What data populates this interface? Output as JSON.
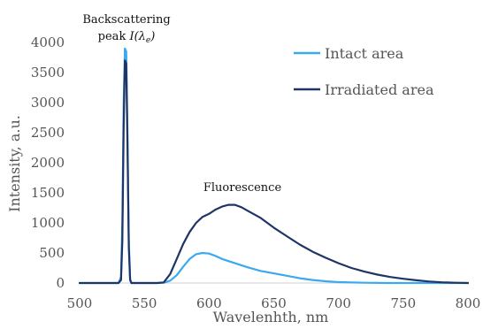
{
  "chart_data": {
    "type": "line",
    "xlabel": "Wavelenhth, nm",
    "ylabel": "Intensity, a.u.",
    "xlim": [
      500,
      800
    ],
    "ylim": [
      0,
      4000
    ],
    "x_ticks": [
      500,
      550,
      600,
      650,
      700,
      750,
      800
    ],
    "y_ticks": [
      0,
      500,
      1000,
      1500,
      2000,
      2500,
      3000,
      3500,
      4000
    ],
    "grid": false,
    "legend_position": "top-right",
    "annotations": {
      "backscatter_line1": "Backscattering",
      "backscatter_line2_prefix": "peak ",
      "backscatter_line2_func": "I",
      "backscatter_line2_sym": "(λ",
      "backscatter_line2_sub": "e",
      "backscatter_line2_close": ")",
      "fluorescence": "Fluorescence"
    },
    "series": [
      {
        "name": "Intact area",
        "color": "#3aa9f0",
        "x": [
          500,
          520,
          530,
          532,
          533,
          534,
          535,
          536,
          537,
          538,
          539,
          540,
          550,
          560,
          565,
          570,
          575,
          580,
          585,
          590,
          595,
          600,
          605,
          610,
          620,
          630,
          640,
          650,
          660,
          670,
          680,
          690,
          700,
          720,
          740,
          760,
          780,
          800
        ],
        "y": [
          0,
          0,
          0,
          100,
          1000,
          3000,
          3900,
          3850,
          2500,
          700,
          60,
          0,
          0,
          0,
          5,
          40,
          130,
          270,
          400,
          480,
          500,
          490,
          450,
          400,
          330,
          260,
          200,
          160,
          120,
          80,
          50,
          30,
          15,
          5,
          0,
          0,
          0,
          0
        ]
      },
      {
        "name": "Irradiated area",
        "color": "#1f3566",
        "x": [
          500,
          520,
          530,
          532,
          533,
          534,
          535,
          536,
          537,
          538,
          539,
          540,
          550,
          560,
          565,
          570,
          575,
          580,
          585,
          590,
          595,
          600,
          605,
          610,
          615,
          620,
          625,
          630,
          640,
          650,
          660,
          670,
          680,
          690,
          700,
          710,
          720,
          730,
          740,
          750,
          760,
          770,
          780,
          790,
          800
        ],
        "y": [
          0,
          0,
          0,
          50,
          700,
          2600,
          3700,
          3650,
          2300,
          600,
          50,
          0,
          0,
          0,
          10,
          150,
          400,
          650,
          850,
          1000,
          1100,
          1150,
          1220,
          1270,
          1300,
          1300,
          1260,
          1200,
          1080,
          920,
          780,
          640,
          520,
          420,
          330,
          250,
          190,
          140,
          100,
          70,
          45,
          25,
          12,
          5,
          0
        ]
      }
    ]
  }
}
